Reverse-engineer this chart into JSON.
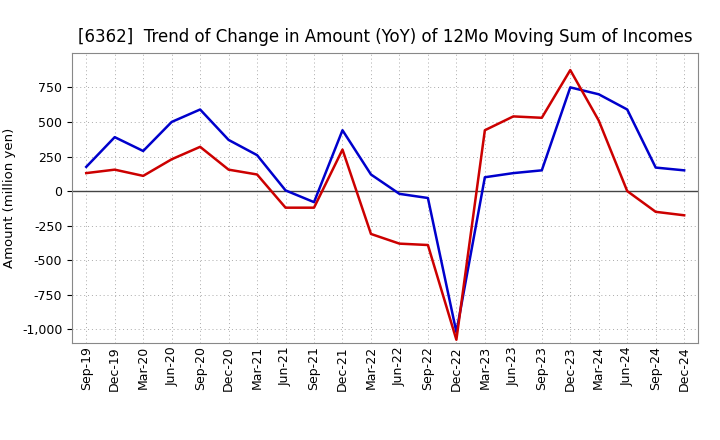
{
  "title": "[6362]  Trend of Change in Amount (YoY) of 12Mo Moving Sum of Incomes",
  "ylabel": "Amount (million yen)",
  "background_color": "#ffffff",
  "grid_color": "#aaaaaa",
  "x_labels": [
    "Sep-19",
    "Dec-19",
    "Mar-20",
    "Jun-20",
    "Sep-20",
    "Dec-20",
    "Mar-21",
    "Jun-21",
    "Sep-21",
    "Dec-21",
    "Mar-22",
    "Jun-22",
    "Sep-22",
    "Dec-22",
    "Mar-23",
    "Jun-23",
    "Sep-23",
    "Dec-23",
    "Mar-24",
    "Jun-24",
    "Sep-24",
    "Dec-24"
  ],
  "ordinary_income": [
    175,
    390,
    290,
    500,
    590,
    370,
    260,
    5,
    -80,
    440,
    120,
    -20,
    -50,
    -1020,
    100,
    130,
    150,
    750,
    700,
    590,
    170,
    150
  ],
  "net_income": [
    130,
    155,
    110,
    230,
    320,
    155,
    120,
    -120,
    -120,
    300,
    -310,
    -380,
    -390,
    -1075,
    440,
    540,
    530,
    875,
    510,
    0,
    -150,
    -175
  ],
  "ordinary_color": "#0000cc",
  "net_color": "#cc0000",
  "ylim": [
    -1100,
    1000
  ],
  "yticks": [
    -1000,
    -750,
    -500,
    -250,
    0,
    250,
    500,
    750
  ],
  "line_width": 1.8,
  "title_fontsize": 12,
  "axis_fontsize": 9,
  "legend_fontsize": 10
}
